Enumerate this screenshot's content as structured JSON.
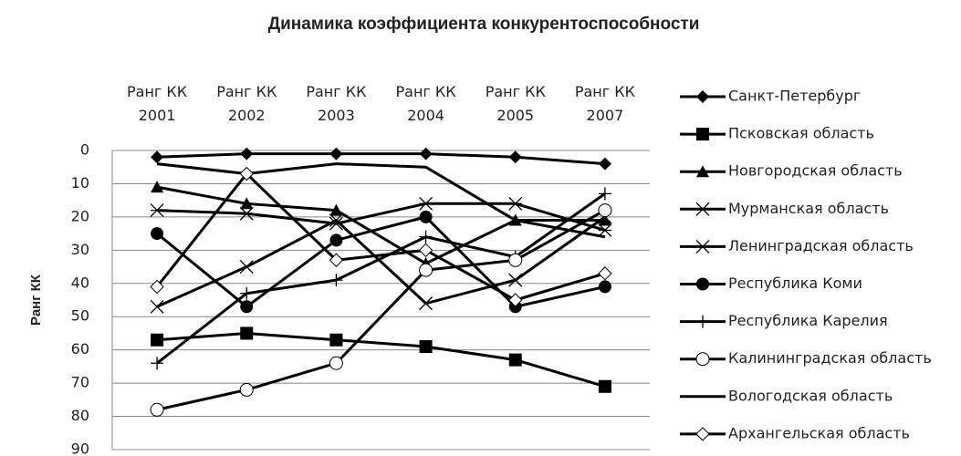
{
  "chart_data": {
    "type": "line",
    "title": "Динамика коэффициента конкурентоспособности",
    "y_label": "Ранг КК",
    "categories": [
      "Ранг КК 2001",
      "Ранг КК 2002",
      "Ранг КК 2003",
      "Ранг КК 2004",
      "Ранг КК 2005",
      "Ранг КК 2007"
    ],
    "ylim": [
      0,
      90
    ],
    "y_inverted": true,
    "yticks": [
      0,
      10,
      20,
      30,
      40,
      50,
      60,
      70,
      80,
      90
    ],
    "grid": true,
    "legend": "right",
    "series": [
      {
        "name": "Санкт-Петербург",
        "color": "#000000",
        "marker": "diamond",
        "values": [
          2,
          1,
          1,
          1,
          2,
          4
        ]
      },
      {
        "name": "Псковская область",
        "color": "#000000",
        "marker": "square",
        "values": [
          57,
          55,
          57,
          59,
          63,
          71
        ]
      },
      {
        "name": "Новгородская область",
        "color": "#000000",
        "marker": "triangle",
        "values": [
          11,
          16,
          18,
          34,
          21,
          21
        ]
      },
      {
        "name": "Мурманская область",
        "color": "#000000",
        "marker": "x",
        "values": [
          47,
          35,
          21,
          46,
          39,
          20
        ]
      },
      {
        "name": "Ленинградская область",
        "color": "#000000",
        "marker": "asterisk",
        "values": [
          18,
          19,
          22,
          16,
          16,
          24
        ]
      },
      {
        "name": "Республика Коми",
        "color": "#000000",
        "marker": "circle",
        "values": [
          25,
          47,
          27,
          20,
          47,
          41
        ]
      },
      {
        "name": "Республика Карелия",
        "color": "#000000",
        "marker": "plus",
        "values": [
          64,
          43,
          39,
          26,
          32,
          13
        ]
      },
      {
        "name": "Калининградская область",
        "color": "#000000",
        "marker": "open-circle",
        "values": [
          78,
          72,
          64,
          36,
          33,
          18
        ]
      },
      {
        "name": "Вологодская область",
        "color": "#000000",
        "marker": "none",
        "values": [
          4,
          7,
          4,
          5,
          21,
          26
        ]
      },
      {
        "name": "Архангельская область",
        "color": "#000000",
        "marker": "open-diamond",
        "values": [
          41,
          7,
          33,
          30,
          45,
          37
        ]
      }
    ]
  }
}
